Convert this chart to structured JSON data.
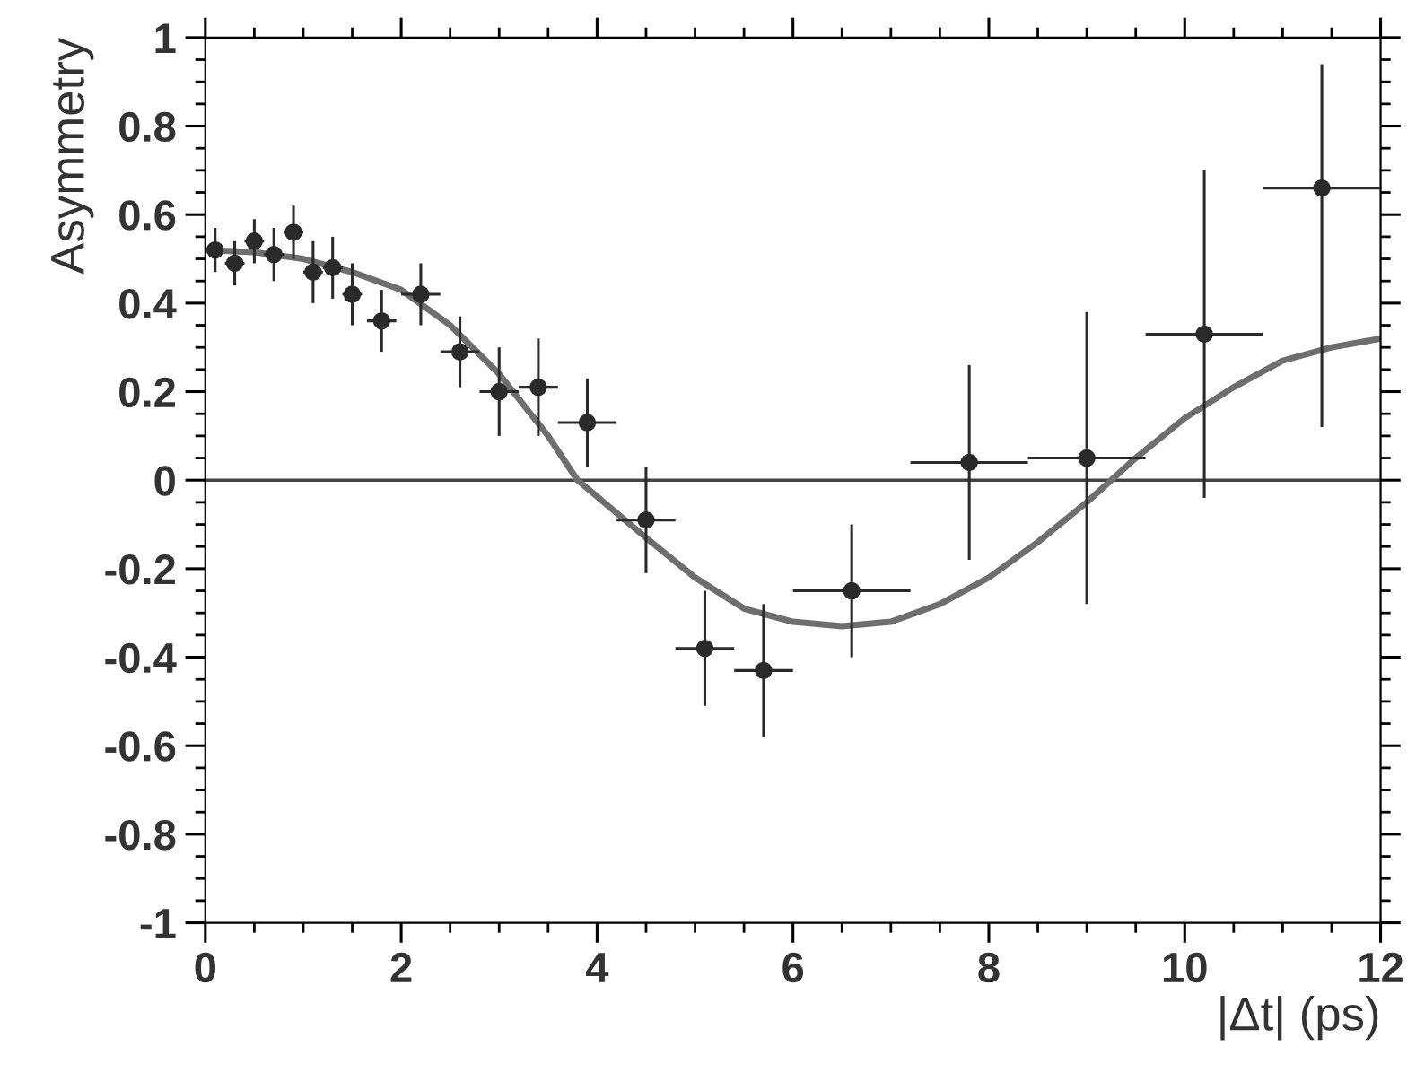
{
  "chart_data": {
    "type": "scatter",
    "xlabel": "|Δt| (ps)",
    "ylabel": "Asymmetry",
    "xlim": [
      0,
      12
    ],
    "ylim": [
      -1,
      1
    ],
    "xticks": [
      0,
      2,
      4,
      6,
      8,
      10,
      12
    ],
    "yticks": [
      -1,
      -0.8,
      -0.6,
      -0.4,
      -0.2,
      0,
      0.2,
      0.4,
      0.6,
      0.8,
      1
    ],
    "grid": false,
    "ref_lines": [
      {
        "axis": "y",
        "value": 0,
        "color": "#444444"
      }
    ],
    "series": [
      {
        "type": "line",
        "color": "#6e6e6e",
        "line_style": "solid",
        "marker": "none",
        "x": [
          0,
          0.5,
          1,
          1.5,
          2,
          2.5,
          3,
          3.5,
          3.8,
          4.5,
          5,
          5.5,
          6,
          6.5,
          7,
          7.5,
          8,
          8.5,
          9,
          9.5,
          10,
          10.5,
          11,
          11.5,
          12
        ],
        "values": [
          0.52,
          0.515,
          0.5,
          0.47,
          0.43,
          0.35,
          0.24,
          0.1,
          0.0,
          -0.13,
          -0.22,
          -0.29,
          -0.32,
          -0.33,
          -0.32,
          -0.28,
          -0.22,
          -0.14,
          -0.05,
          0.05,
          0.14,
          0.21,
          0.27,
          0.3,
          0.32
        ]
      },
      {
        "color": "#2a2a2a",
        "marker": "circle",
        "x": [
          0.1,
          0.3,
          0.5,
          0.7,
          0.9,
          1.1,
          1.3,
          1.5,
          1.8,
          2.2,
          2.6,
          3.0,
          3.4,
          3.9,
          4.5,
          5.1,
          5.7,
          6.6,
          7.8,
          9.0,
          10.2,
          11.4
        ],
        "values": [
          0.52,
          0.49,
          0.54,
          0.51,
          0.56,
          0.47,
          0.48,
          0.42,
          0.36,
          0.42,
          0.29,
          0.2,
          0.21,
          0.13,
          -0.09,
          -0.38,
          -0.43,
          -0.25,
          0.04,
          0.05,
          0.33,
          0.66
        ],
        "errors": [
          0.05,
          0.05,
          0.05,
          0.06,
          0.06,
          0.07,
          0.07,
          0.07,
          0.07,
          0.07,
          0.08,
          0.1,
          0.11,
          0.1,
          0.12,
          0.13,
          0.15,
          0.15,
          0.22,
          0.33,
          0.37,
          [
            0.12,
            0.94
          ]
        ],
        "xerrors": [
          null,
          0.1,
          0.1,
          0.1,
          0.1,
          0.1,
          0.1,
          0.1,
          0.15,
          0.2,
          0.2,
          0.2,
          0.2,
          0.3,
          0.3,
          0.3,
          0.3,
          0.6,
          0.6,
          0.6,
          0.6,
          0.6
        ]
      }
    ]
  }
}
